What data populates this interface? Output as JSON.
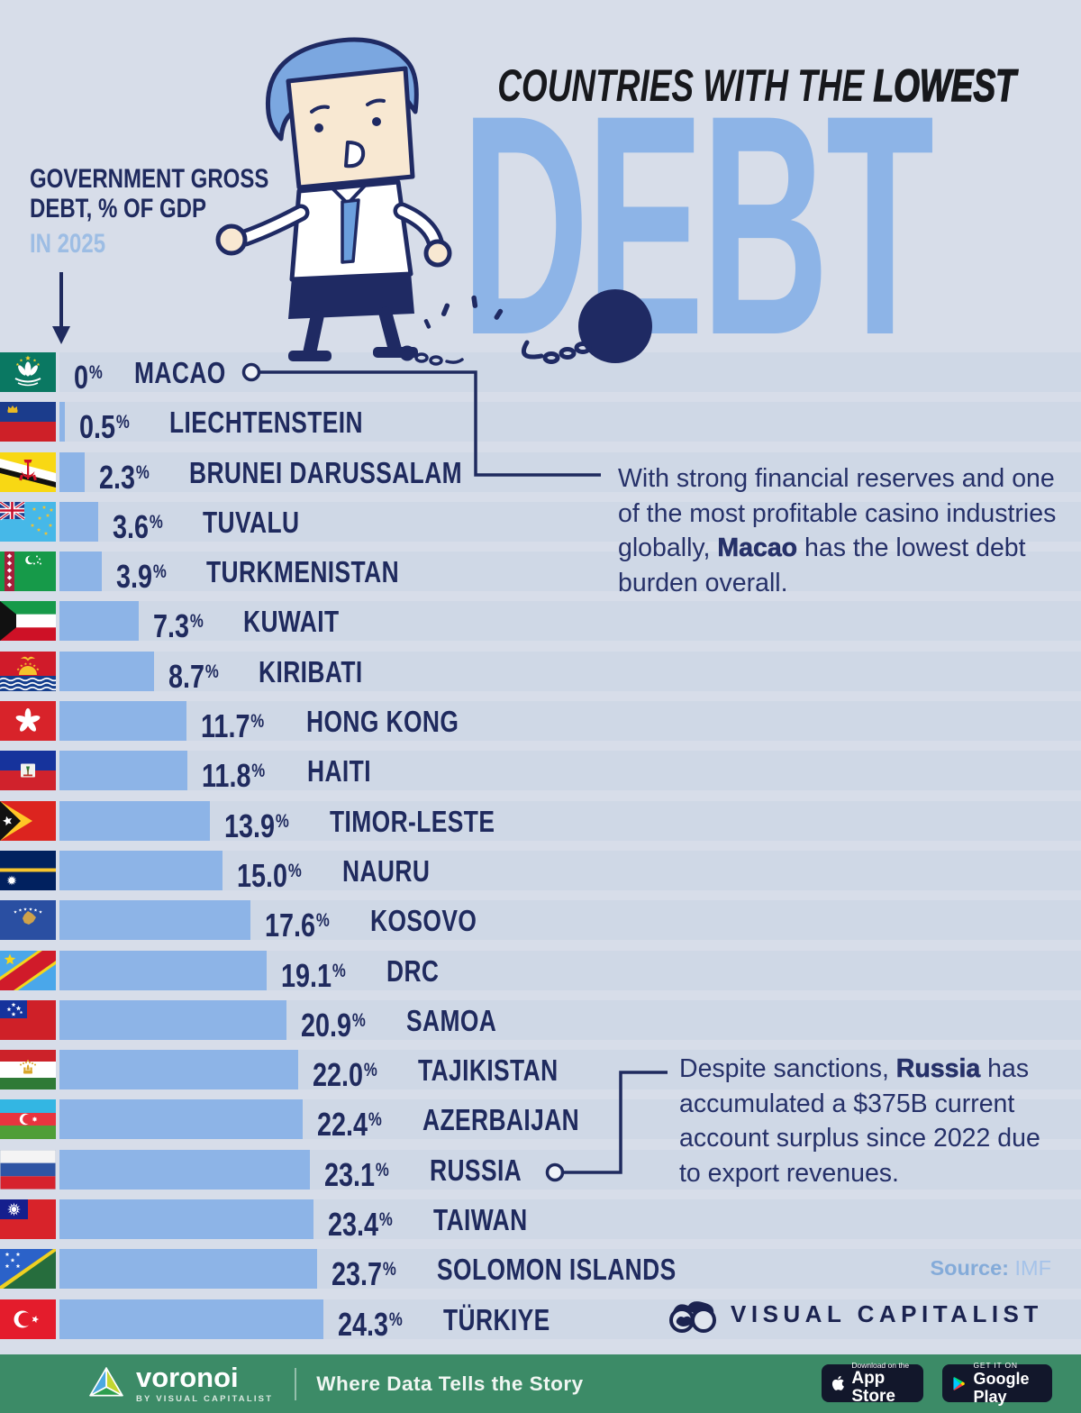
{
  "header": {
    "kicker_line1": "GOVERNMENT GROSS",
    "kicker_line2": "DEBT, % OF GDP",
    "year_note": "IN 2025",
    "title_regular": "COUNTRIES WITH THE ",
    "title_emphasis": "LOWEST",
    "big_word": "DEBT"
  },
  "chart_data": {
    "type": "bar",
    "orientation": "horizontal",
    "title": "Countries with the Lowest Debt",
    "xlabel": "Government gross debt, % of GDP (2025)",
    "unit": "% of GDP",
    "year": 2025,
    "xlim": [
      0,
      25
    ],
    "grid": false,
    "categories": [
      "MACAO",
      "LIECHTENSTEIN",
      "BRUNEI DARUSSALAM",
      "TUVALU",
      "TURKMENISTAN",
      "KUWAIT",
      "KIRIBATI",
      "HONG KONG",
      "HAITI",
      "TIMOR-LESTE",
      "NAURU",
      "KOSOVO",
      "DRC",
      "SAMOA",
      "TAJIKISTAN",
      "AZERBAIJAN",
      "RUSSIA",
      "TAIWAN",
      "SOLOMON ISLANDS",
      "TÜRKIYE"
    ],
    "values": [
      0,
      0.5,
      2.3,
      3.6,
      3.9,
      7.3,
      8.7,
      11.7,
      11.8,
      13.9,
      15.0,
      17.6,
      19.1,
      20.9,
      22.0,
      22.4,
      23.1,
      23.4,
      23.7,
      24.3
    ],
    "rows": [
      {
        "country": "MACAO",
        "label": "0",
        "value": 0,
        "flag": "macao"
      },
      {
        "country": "LIECHTENSTEIN",
        "label": "0.5",
        "value": 0.5,
        "flag": "liechtenstein"
      },
      {
        "country": "BRUNEI DARUSSALAM",
        "label": "2.3",
        "value": 2.3,
        "flag": "brunei"
      },
      {
        "country": "TUVALU",
        "label": "3.6",
        "value": 3.6,
        "flag": "tuvalu"
      },
      {
        "country": "TURKMENISTAN",
        "label": "3.9",
        "value": 3.9,
        "flag": "turkmenistan"
      },
      {
        "country": "KUWAIT",
        "label": "7.3",
        "value": 7.3,
        "flag": "kuwait"
      },
      {
        "country": "KIRIBATI",
        "label": "8.7",
        "value": 8.7,
        "flag": "kiribati"
      },
      {
        "country": "HONG KONG",
        "label": "11.7",
        "value": 11.7,
        "flag": "hongkong"
      },
      {
        "country": "HAITI",
        "label": "11.8",
        "value": 11.8,
        "flag": "haiti"
      },
      {
        "country": "TIMOR-LESTE",
        "label": "13.9",
        "value": 13.9,
        "flag": "timor"
      },
      {
        "country": "NAURU",
        "label": "15.0",
        "value": 15.0,
        "flag": "nauru"
      },
      {
        "country": "KOSOVO",
        "label": "17.6",
        "value": 17.6,
        "flag": "kosovo"
      },
      {
        "country": "DRC",
        "label": "19.1",
        "value": 19.1,
        "flag": "drc"
      },
      {
        "country": "SAMOA",
        "label": "20.9",
        "value": 20.9,
        "flag": "samoa"
      },
      {
        "country": "TAJIKISTAN",
        "label": "22.0",
        "value": 22.0,
        "flag": "tajikistan"
      },
      {
        "country": "AZERBAIJAN",
        "label": "22.4",
        "value": 22.4,
        "flag": "azerbaijan"
      },
      {
        "country": "RUSSIA",
        "label": "23.1",
        "value": 23.1,
        "flag": "russia"
      },
      {
        "country": "TAIWAN",
        "label": "23.4",
        "value": 23.4,
        "flag": "taiwan"
      },
      {
        "country": "SOLOMON ISLANDS",
        "label": "23.7",
        "value": 23.7,
        "flag": "solomon"
      },
      {
        "country": "TÜRKIYE",
        "label": "24.3",
        "value": 24.3,
        "flag": "turkiye"
      }
    ]
  },
  "annotations": {
    "macao": {
      "pre": "With strong financial reserves and one of the most profitable casino industries globally, ",
      "bold": "Macao",
      "post": " has the lowest debt burden overall."
    },
    "russia": {
      "pre": "Despite sanctions, ",
      "bold": "Russia",
      "post": " has accumulated a $375B current account surplus since 2022 due to export revenues."
    }
  },
  "source": {
    "label": "Source:",
    "value": "IMF"
  },
  "brand": {
    "wordmark": "VISUAL CAPITALIST"
  },
  "footer": {
    "logo": "voronoi",
    "logo_sub": "BY VISUAL CAPITALIST",
    "tagline": "Where Data Tells the Story",
    "appstore": {
      "line1": "Download on the",
      "line2": "App Store"
    },
    "gplay": {
      "line1": "GET IT ON",
      "line2": "Google Play"
    }
  },
  "colors": {
    "bg": "#d7dde9",
    "stripe": "#cfd8e6",
    "bar": "#8db4e7",
    "navy": "#1f2a5e",
    "debt": "#8db4e7",
    "title": "#17181c",
    "light_blue": "#9dbde4",
    "green": "#3c8b67",
    "badge": "#12172b",
    "annotation": "#263169"
  }
}
